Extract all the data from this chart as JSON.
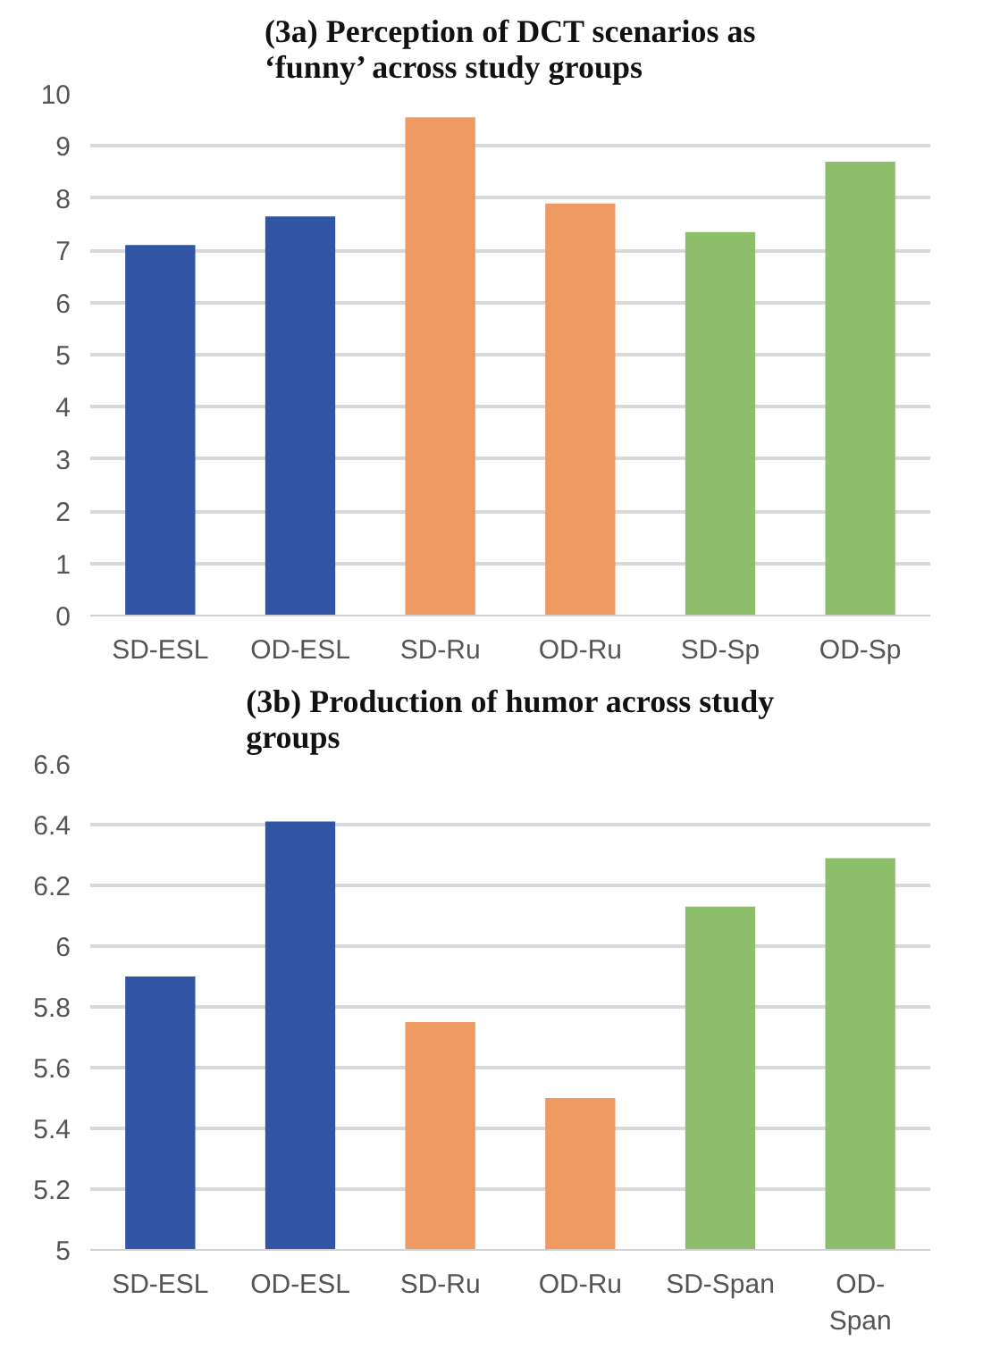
{
  "chart_data": [
    {
      "type": "bar",
      "title": "(3a) Perception of DCT scenarios as ‘funny’ across study groups",
      "categories": [
        "SD-ESL",
        "OD-ESL",
        "SD-Ru",
        "OD-Ru",
        "SD-Sp",
        "OD-Sp"
      ],
      "values": [
        7.1,
        7.65,
        9.55,
        7.9,
        7.35,
        8.7
      ],
      "colors": [
        "#2f55a4",
        "#2f55a4",
        "#ef9a62",
        "#ef9a62",
        "#8dbf6a",
        "#8dbf6a"
      ],
      "ylim": [
        0,
        10
      ],
      "yticks": [
        0,
        1,
        2,
        3,
        4,
        5,
        6,
        7,
        8,
        9,
        10
      ],
      "grid": "y"
    },
    {
      "type": "bar",
      "title": "(3b) Production of humor across study groups",
      "categories": [
        "SD-ESL",
        "OD-ESL",
        "SD-Ru",
        "OD-Ru",
        "SD-Span",
        "OD-Span"
      ],
      "values": [
        5.9,
        6.41,
        5.75,
        5.5,
        6.13,
        6.29
      ],
      "colors": [
        "#2f55a4",
        "#2f55a4",
        "#ef9a62",
        "#ef9a62",
        "#8dbf6a",
        "#8dbf6a"
      ],
      "ylim": [
        5,
        6.6
      ],
      "yticks": [
        5,
        5.2,
        5.4,
        5.6,
        5.8,
        6,
        6.2,
        6.4,
        6.6
      ],
      "grid": "y"
    }
  ]
}
